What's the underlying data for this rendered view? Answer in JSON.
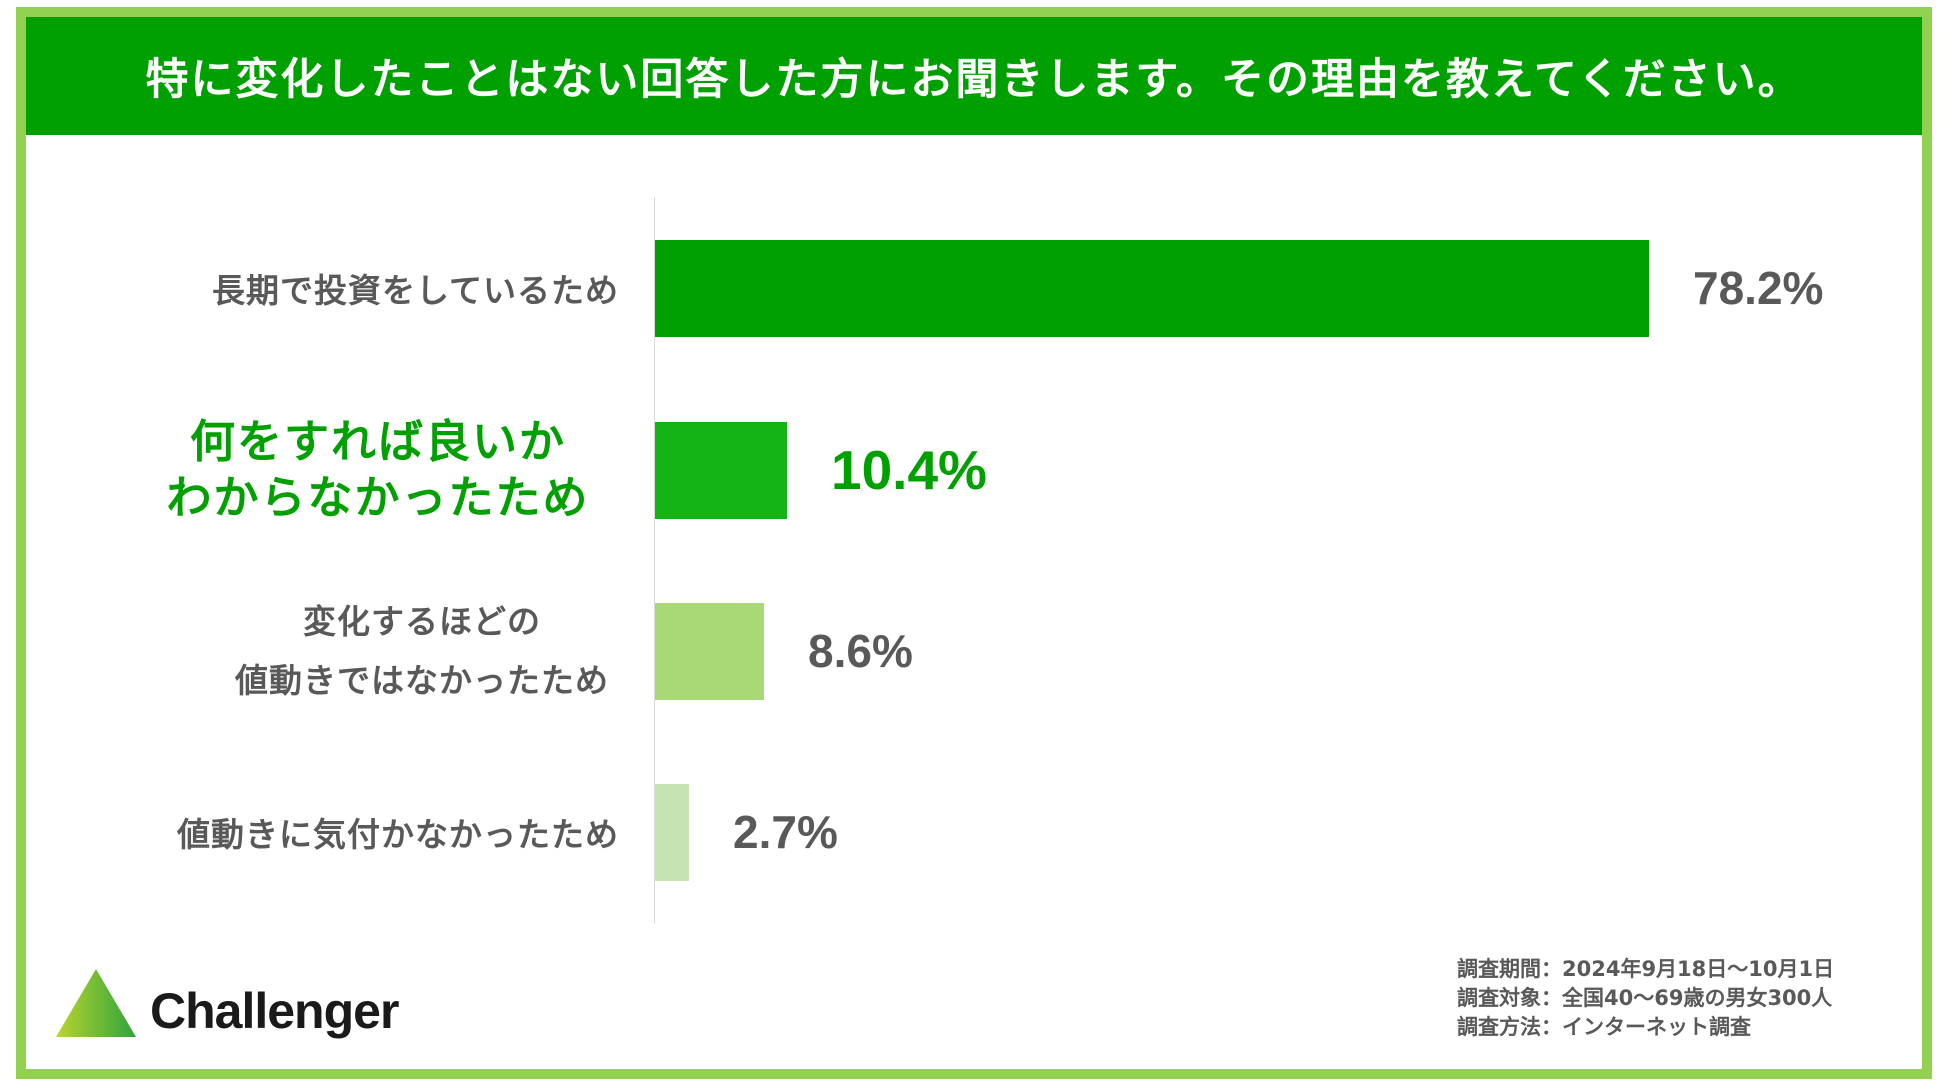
{
  "header": {
    "title": "特に変化したことはない回答した方にお聞きします。その理由を教えてください。"
  },
  "colors": {
    "frame": "#92D050",
    "header_bg": "#00A000",
    "highlight": "#00A000",
    "label_gray": "#595959"
  },
  "chart_data": {
    "type": "bar",
    "orientation": "horizontal",
    "categories": [
      "長期で投資をしているため",
      "何をすれば良いか\nわからなかったため",
      "変化するほどの\n値動きではなかったため",
      "値動きに気付かなかったため"
    ],
    "values": [
      78.2,
      10.4,
      8.6,
      2.7
    ],
    "value_labels": [
      "78.2%",
      "10.4%",
      "8.6%",
      "2.7%"
    ],
    "xlim": [
      0,
      100
    ],
    "bar_colors": [
      "#00A000",
      "#14B414",
      "#A9D977",
      "#C5E3B3"
    ],
    "highlight_index": 1,
    "grid": false,
    "legend": "none"
  },
  "footer": {
    "logo_text": "Challenger",
    "notes": [
      "調査期間：2024年9月18日～10月1日",
      "調査対象：全国40～69歳の男女300人",
      "調査方法：インターネット調査"
    ]
  }
}
